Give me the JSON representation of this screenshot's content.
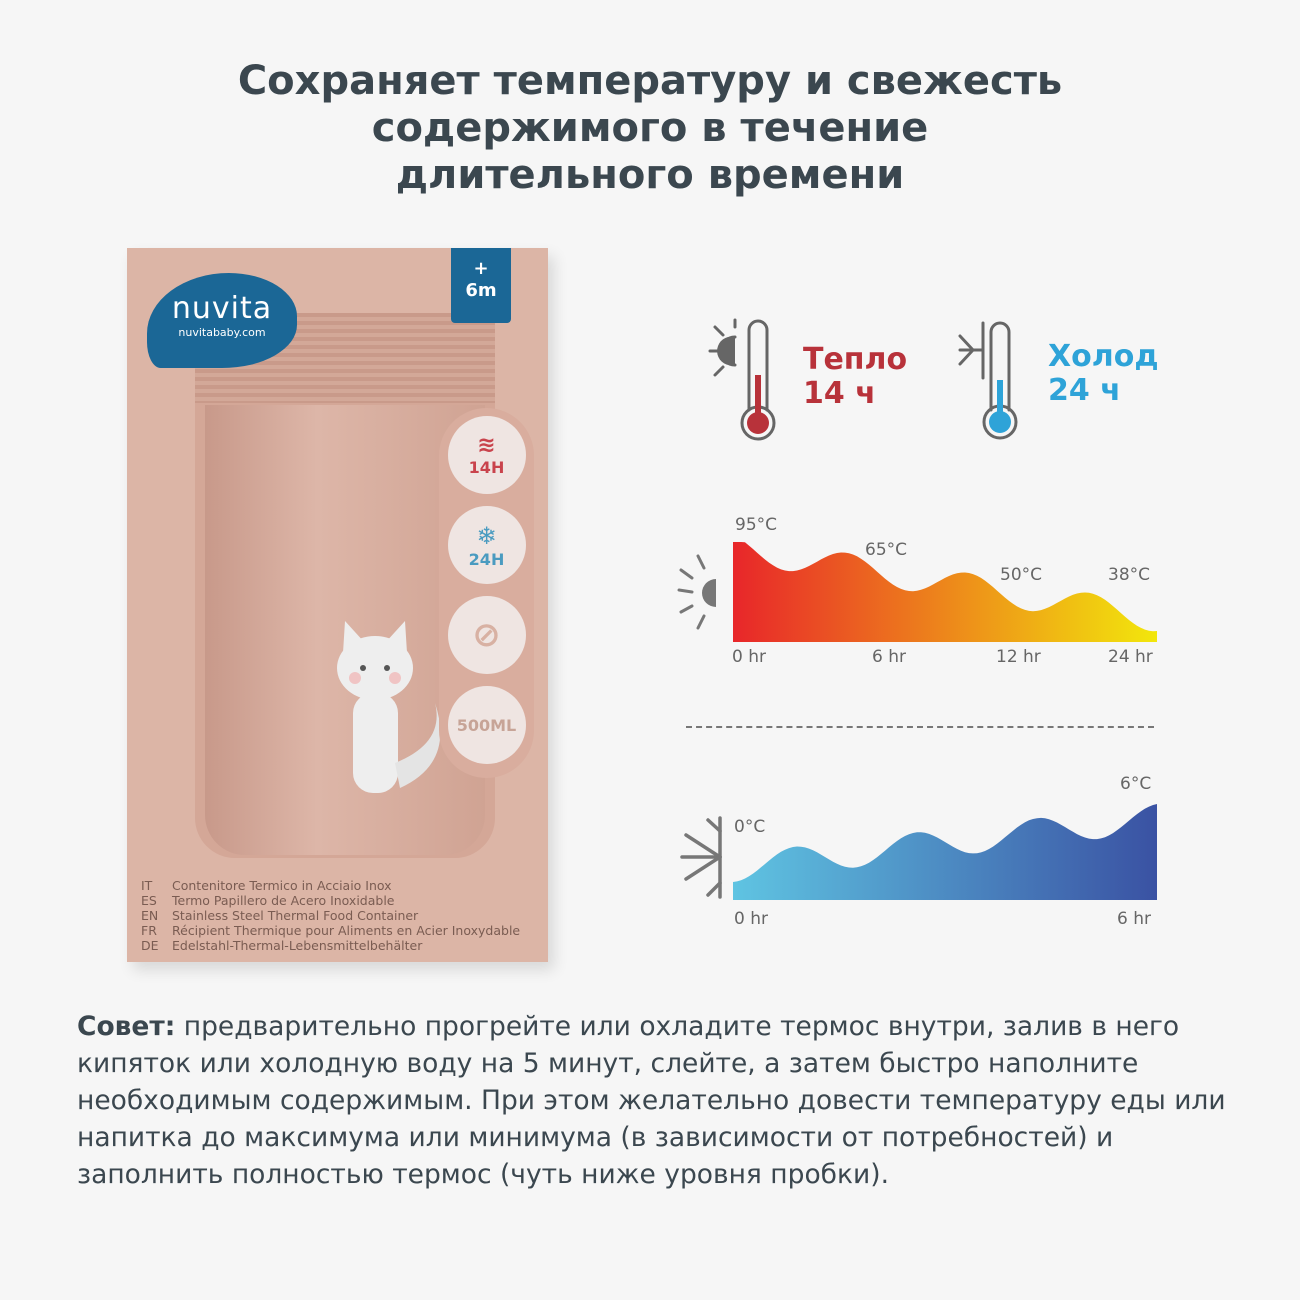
{
  "title": [
    "Сохраняет температуру и свежесть",
    "содержимого в течение",
    "длительного времени"
  ],
  "product": {
    "brand": "nuvita",
    "site": "nuvitababy.com",
    "age_plus": "+",
    "age": "6m",
    "badges": [
      "14H",
      "24H",
      "500ML"
    ],
    "langs": [
      {
        "code": "IT",
        "text": "Contenitore Termico in Acciaio Inox"
      },
      {
        "code": "ES",
        "text": "Termo Papillero de Acero Inoxidable"
      },
      {
        "code": "EN",
        "text": "Stainless Steel Thermal Food Container"
      },
      {
        "code": "FR",
        "text": "Récipient Thermique pour Aliments en Acier Inoxydable"
      },
      {
        "code": "DE",
        "text": "Edelstahl-Thermal-Lebensmittelbehälter"
      }
    ]
  },
  "warm": {
    "label": "Тепло",
    "hours": "14 ч",
    "color": "#b8323a"
  },
  "cold": {
    "label": "Холод",
    "hours": "24 ч",
    "color": "#2ea3d8"
  },
  "chart_data": [
    {
      "type": "area",
      "icon": "sun-icon",
      "x": [
        "0 hr",
        "6 hr",
        "12 hr",
        "24 hr"
      ],
      "values": [
        95,
        65,
        50,
        38
      ],
      "labels": [
        "95°C",
        "65°C",
        "50°C",
        "38°C"
      ],
      "colors": [
        "#e8262a",
        "#f2e70c"
      ]
    },
    {
      "type": "area",
      "icon": "snowflake-icon",
      "x": [
        "0 hr",
        "6 hr"
      ],
      "values": [
        0,
        6
      ],
      "labels": [
        "0°C",
        "6°C"
      ],
      "colors": [
        "#5fc4e2",
        "#3a52a3"
      ]
    }
  ],
  "tip": {
    "bold": "Совет:",
    "text": " предварительно прогрейте или охладите термос внутри, залив в него кипяток или холодную воду на 5 минут, слейте, а затем быстро наполните необходимым содержимым. При этом желательно довести температуру еды или напитка до максимума или минимума (в зависимости от потребностей) и заполнить полностью термос (чуть ниже уровня пробки)."
  }
}
